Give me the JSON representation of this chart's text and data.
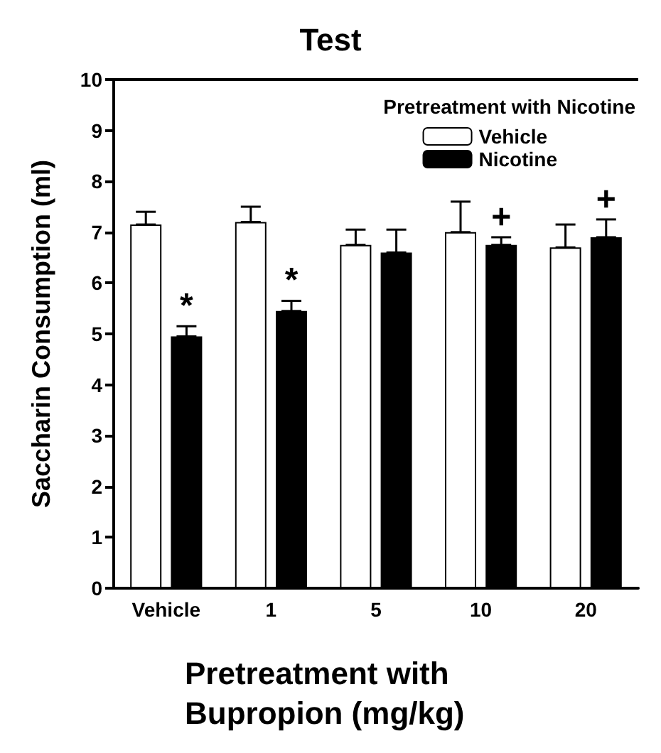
{
  "chart_data": {
    "type": "bar",
    "title": "Test",
    "xlabel": "Pretreatment with Bupropion (mg/kg)",
    "ylabel": "Saccharin Consumption (ml)",
    "legend_title": "Pretreatment with Nicotine",
    "categories": [
      "Vehicle",
      "1",
      "5",
      "10",
      "20"
    ],
    "series": [
      {
        "name": "Vehicle",
        "color": "#ffffff",
        "values": [
          7.15,
          7.2,
          6.75,
          7.0,
          6.7
        ],
        "errors": [
          [
            7.15,
            7.4
          ],
          [
            7.2,
            7.5
          ],
          [
            6.75,
            7.05
          ],
          [
            7.0,
            7.6
          ],
          [
            6.7,
            7.15
          ]
        ]
      },
      {
        "name": "Nicotine",
        "color": "#000000",
        "values": [
          4.95,
          5.45,
          6.6,
          6.75,
          6.9
        ],
        "errors": [
          [
            4.95,
            5.15
          ],
          [
            5.45,
            5.65
          ],
          [
            6.6,
            7.05
          ],
          [
            6.75,
            6.9
          ],
          [
            6.9,
            7.25
          ]
        ]
      }
    ],
    "annotations": [
      {
        "text": "*",
        "x": "Vehicle",
        "y": 4.95
      },
      {
        "text": "*",
        "x": "1",
        "y": 5.45
      },
      {
        "text": "+",
        "x": "10",
        "y": 6.75
      },
      {
        "text": "+",
        "x": "20",
        "y": 6.9
      }
    ],
    "ylim": [
      0,
      10
    ],
    "yticks": [
      0,
      1,
      2,
      3,
      4,
      5,
      6,
      7,
      8,
      9,
      10
    ],
    "grid": false,
    "legend": "top right"
  }
}
